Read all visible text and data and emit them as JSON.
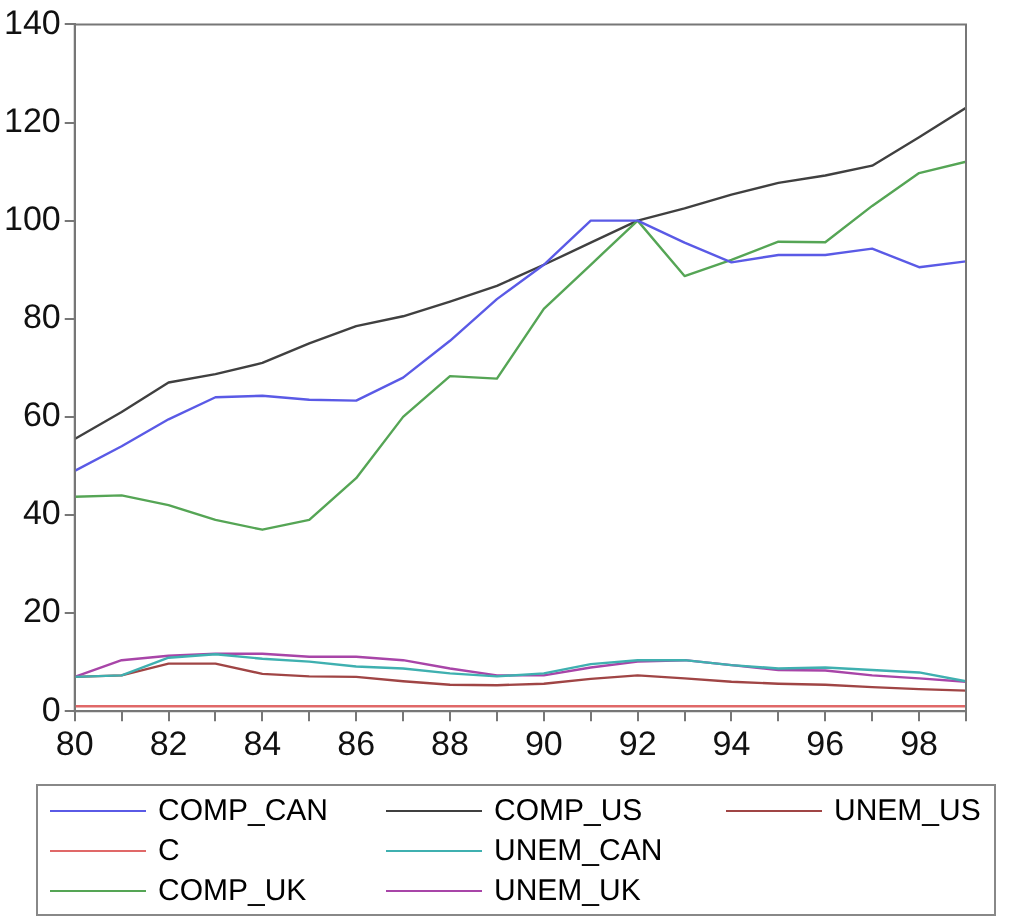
{
  "chart_data": {
    "type": "line",
    "x": [
      1980,
      1981,
      1982,
      1983,
      1984,
      1985,
      1986,
      1987,
      1988,
      1989,
      1990,
      1991,
      1992,
      1993,
      1994,
      1995,
      1996,
      1997,
      1998,
      1999
    ],
    "xlim": [
      1980,
      1999
    ],
    "xticks": [
      {
        "value": 1980,
        "label": "80"
      },
      {
        "value": 1981,
        "label": null
      },
      {
        "value": 1982,
        "label": "82"
      },
      {
        "value": 1983,
        "label": null
      },
      {
        "value": 1984,
        "label": "84"
      },
      {
        "value": 1985,
        "label": null
      },
      {
        "value": 1986,
        "label": "86"
      },
      {
        "value": 1987,
        "label": null
      },
      {
        "value": 1988,
        "label": "88"
      },
      {
        "value": 1989,
        "label": null
      },
      {
        "value": 1990,
        "label": "90"
      },
      {
        "value": 1991,
        "label": null
      },
      {
        "value": 1992,
        "label": "92"
      },
      {
        "value": 1993,
        "label": null
      },
      {
        "value": 1994,
        "label": "94"
      },
      {
        "value": 1995,
        "label": null
      },
      {
        "value": 1996,
        "label": "96"
      },
      {
        "value": 1997,
        "label": null
      },
      {
        "value": 1998,
        "label": "98"
      },
      {
        "value": 1999,
        "label": null
      }
    ],
    "ylim": [
      0,
      140
    ],
    "yticks": [
      0,
      20,
      40,
      60,
      80,
      100,
      120,
      140
    ],
    "grid": false,
    "legend": "bottom",
    "marker": "none",
    "line_style": "solid",
    "series": [
      {
        "name": "COMP_CAN",
        "color": "#5a5ae6",
        "values": [
          49,
          54,
          59.5,
          64,
          64.3,
          63.5,
          63.3,
          68,
          75.5,
          84,
          91,
          100,
          100,
          95.5,
          91.5,
          93,
          93,
          94.3,
          90.5,
          91.7
        ]
      },
      {
        "name": "C",
        "color": "#e06868",
        "values": [
          1,
          1,
          1,
          1,
          1,
          1,
          1,
          1,
          1,
          1,
          1,
          1,
          1,
          1,
          1,
          1,
          1,
          1,
          1,
          1
        ]
      },
      {
        "name": "COMP_UK",
        "color": "#55a555",
        "values": [
          43.7,
          44,
          42,
          39,
          37,
          39,
          47.5,
          60,
          68.3,
          67.8,
          82,
          91,
          100,
          88.7,
          92,
          95.7,
          95.6,
          103,
          109.7,
          112
        ]
      },
      {
        "name": "COMP_US",
        "color": "#404040",
        "values": [
          55.5,
          61,
          67,
          68.7,
          71,
          75,
          78.5,
          80.5,
          83.5,
          86.7,
          91,
          95.5,
          100,
          102.5,
          105.3,
          107.7,
          109.2,
          111.2,
          117,
          123
        ]
      },
      {
        "name": "UNEM_CAN",
        "color": "#3fb0b0",
        "values": [
          7,
          7.3,
          10.9,
          11.6,
          10.7,
          10.1,
          9.1,
          8.7,
          7.7,
          7.1,
          7.7,
          9.6,
          10.4,
          10.4,
          9.4,
          8.7,
          8.9,
          8.4,
          7.9,
          6.1
        ]
      },
      {
        "name": "UNEM_UK",
        "color": "#a845a8",
        "values": [
          7,
          10.4,
          11.3,
          11.7,
          11.7,
          11.1,
          11.1,
          10.4,
          8.7,
          7.3,
          7.3,
          8.9,
          10.1,
          10.4,
          9.4,
          8.4,
          8.3,
          7.3,
          6.7,
          6
        ]
      },
      {
        "name": "UNEM_US",
        "color": "#a04545",
        "values": [
          7,
          7.3,
          9.7,
          9.7,
          7.6,
          7.1,
          7,
          6.1,
          5.4,
          5.3,
          5.6,
          6.6,
          7.3,
          6.7,
          6,
          5.6,
          5.4,
          4.9,
          4.5,
          4.2
        ]
      }
    ]
  }
}
